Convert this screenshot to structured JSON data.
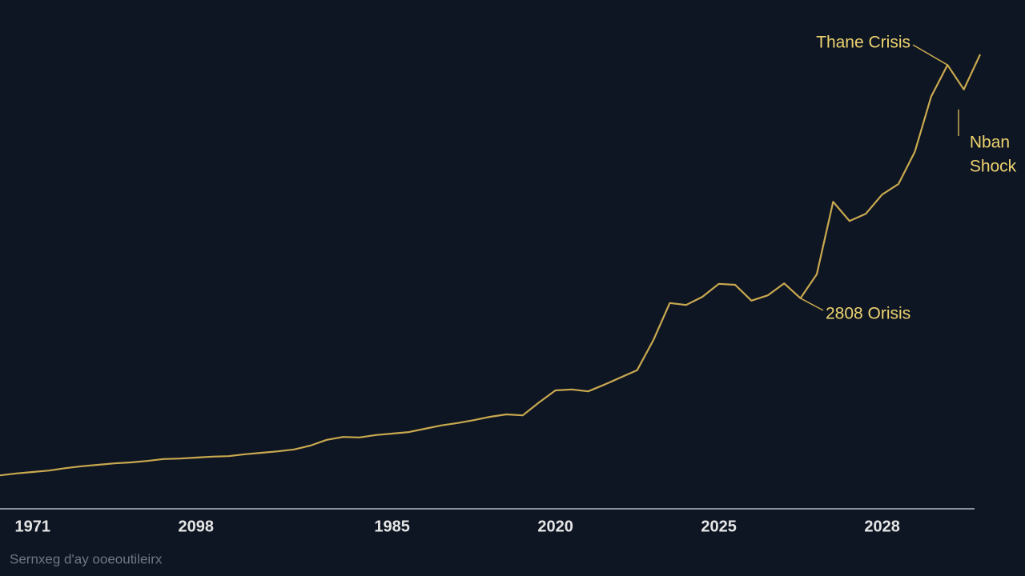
{
  "chart_data": {
    "type": "line",
    "categories": [
      null,
      null,
      "1971",
      null,
      null,
      null,
      null,
      null,
      null,
      null,
      null,
      null,
      "2098",
      null,
      null,
      null,
      null,
      null,
      null,
      null,
      null,
      null,
      null,
      null,
      "1985",
      null,
      null,
      null,
      null,
      null,
      null,
      null,
      null,
      null,
      "2020",
      null,
      null,
      null,
      null,
      null,
      null,
      null,
      null,
      null,
      "2025",
      null,
      null,
      null,
      null,
      null,
      null,
      null,
      null,
      null,
      "2028",
      null,
      null,
      null,
      null,
      null,
      null
    ],
    "values": [
      6.8,
      7.2,
      7.5,
      7.8,
      8.3,
      8.7,
      9.0,
      9.3,
      9.5,
      9.8,
      10.2,
      10.3,
      10.5,
      10.7,
      10.8,
      11.2,
      11.5,
      11.8,
      12.2,
      13.0,
      14.2,
      14.8,
      14.7,
      15.2,
      15.5,
      15.8,
      16.5,
      17.2,
      17.7,
      18.3,
      19.0,
      19.5,
      19.3,
      22.0,
      24.5,
      24.7,
      24.3,
      25.7,
      27.2,
      28.7,
      35.0,
      42.7,
      42.3,
      44.0,
      46.7,
      46.5,
      43.2,
      44.3,
      46.8,
      43.7,
      48.7,
      63.8,
      59.8,
      61.3,
      65.3,
      67.5,
      74.2,
      85.7,
      92.3,
      87.2,
      94.5
    ],
    "color": "#c9a94f",
    "ylim": [
      0,
      100
    ],
    "annotations": [
      {
        "text": "Thane Crisis"
      },
      {
        "text": [
          "Nban",
          "Shock"
        ]
      },
      {
        "text": "2808 Orisis"
      }
    ],
    "source": "Sernxeg d'ay ooeoutileirx"
  }
}
